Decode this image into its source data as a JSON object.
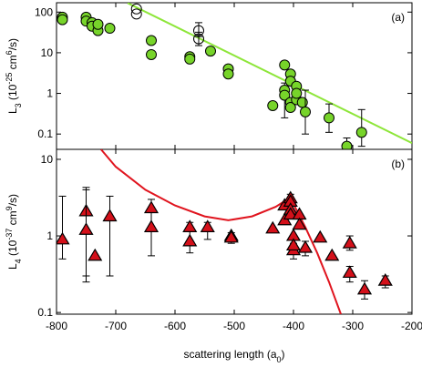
{
  "chart_data": [
    {
      "type": "scatter",
      "panel_label": "(a)",
      "ylabel": [
        {
          "text": "L"
        },
        {
          "text": "3",
          "shift": "sub"
        },
        {
          "text": " (10"
        },
        {
          "text": "-25",
          "shift": "super"
        },
        {
          "text": " cm"
        },
        {
          "text": "6",
          "shift": "super"
        },
        {
          "text": "/s)"
        }
      ],
      "xlim": [
        -800,
        -200
      ],
      "xticks": [
        -800,
        -700,
        -600,
        -500,
        -400,
        -300,
        -200
      ],
      "ylim": [
        0.042,
        170
      ],
      "yticks": [
        0.1,
        1,
        10,
        100
      ],
      "log_y": true,
      "series": [
        {
          "kind": "line",
          "color": "#8ee63a",
          "x": [
            -680,
            -200
          ],
          "values": [
            167,
            0.06
          ]
        },
        {
          "kind": "circle",
          "color": "#77d42a",
          "edge": "#000000",
          "x": [
            -790,
            -790,
            -750,
            -750,
            -740,
            -740,
            -730,
            -730,
            -710,
            -640,
            -640,
            -575,
            -575,
            -540,
            -510,
            -510,
            -435,
            -415,
            -415,
            -415,
            -405,
            -405,
            -405,
            -405,
            -395,
            -395,
            -395,
            -385,
            -380,
            -340,
            -310,
            -285
          ],
          "values": [
            75,
            65,
            75,
            60,
            55,
            45,
            35,
            50,
            40,
            20,
            9,
            8,
            7,
            11,
            4,
            3,
            0.5,
            5,
            1.2,
            0.9,
            3,
            2,
            0.6,
            0.45,
            1.5,
            0.7,
            1.0,
            0.6,
            0.35,
            0.25,
            0.05,
            0.11
          ],
          "yerr": [
            null,
            null,
            null,
            null,
            null,
            null,
            null,
            null,
            null,
            null,
            null,
            null,
            null,
            null,
            null,
            null,
            null,
            null,
            [
              0.25,
              1.8
            ],
            null,
            null,
            null,
            null,
            null,
            null,
            null,
            null,
            null,
            [
              0.1,
              1.2
            ],
            [
              0.11,
              0.55
            ],
            [
              0.042,
              0.08
            ],
            [
              0.05,
              0.4
            ]
          ]
        },
        {
          "kind": "circle",
          "color": "none",
          "edge": "#000000",
          "x": [
            -665,
            -665,
            -560,
            -560
          ],
          "values": [
            120,
            90,
            35,
            22
          ],
          "yerr": [
            null,
            null,
            [
              25,
              55
            ],
            [
              15,
              32
            ]
          ]
        }
      ]
    },
    {
      "type": "scatter",
      "panel_label": "(b)",
      "ylabel": [
        {
          "text": "L"
        },
        {
          "text": "4",
          "shift": "sub"
        },
        {
          "text": " (10"
        },
        {
          "text": "-37",
          "shift": "super"
        },
        {
          "text": " cm"
        },
        {
          "text": "9",
          "shift": "super"
        },
        {
          "text": "/s)"
        }
      ],
      "xlabel": [
        {
          "text": "scattering length (a"
        },
        {
          "text": "0",
          "shift": "sub"
        },
        {
          "text": ")"
        }
      ],
      "xlim": [
        -800,
        -200
      ],
      "xticks": [
        -800,
        -700,
        -600,
        -500,
        -400,
        -300,
        -200
      ],
      "ylim": [
        0.095,
        13.5
      ],
      "yticks": [
        0.1,
        1,
        10
      ],
      "log_y": true,
      "series": [
        {
          "kind": "line",
          "color": "#e0141e",
          "x": [
            -725,
            -700,
            -650,
            -600,
            -550,
            -510,
            -470,
            -430,
            -410,
            -400,
            -380,
            -360,
            -340,
            -320
          ],
          "values": [
            13.5,
            8,
            4,
            2.5,
            1.8,
            1.6,
            1.8,
            2.4,
            3.0,
            2.6,
            1.3,
            0.6,
            0.25,
            0.095
          ]
        },
        {
          "kind": "triangle",
          "color": "#d4101a",
          "edge": "#000000",
          "x": [
            -790,
            -750,
            -750,
            -735,
            -710,
            -640,
            -640,
            -575,
            -575,
            -545,
            -505,
            -505,
            -435,
            -415,
            -415,
            -405,
            -405,
            -405,
            -405,
            -400,
            -400,
            -400,
            -390,
            -390,
            -380,
            -355,
            -335,
            -305,
            -305,
            -280,
            -245
          ],
          "values": [
            0.9,
            2.1,
            1.2,
            0.55,
            1.8,
            2.3,
            1.3,
            1.3,
            0.85,
            1.3,
            1.0,
            0.95,
            1.25,
            2.5,
            1.6,
            3.1,
            2.8,
            2.2,
            1.9,
            0.65,
            1.0,
            0.75,
            1.9,
            1.4,
            0.7,
            0.95,
            0.55,
            0.8,
            0.33,
            0.2,
            0.26
          ],
          "yerr": [
            [
              0.5,
              3.3
            ],
            [
              0.3,
              4.3
            ],
            [
              0.25,
              4
            ],
            null,
            [
              0.3,
              3.3
            ],
            [
              0.55,
              3
            ],
            null,
            [
              0.6,
              1.5
            ],
            null,
            [
              0.9,
              1.5
            ],
            [
              0.8,
              1.1
            ],
            null,
            null,
            null,
            null,
            [
              2.2,
              3.5
            ],
            null,
            null,
            null,
            [
              0.5,
              0.8
            ],
            null,
            null,
            null,
            null,
            [
              0.55,
              0.85
            ],
            null,
            null,
            [
              0.65,
              1.0
            ],
            [
              0.25,
              0.4
            ],
            [
              0.15,
              0.26
            ],
            [
              0.21,
              0.3
            ]
          ]
        }
      ]
    }
  ]
}
